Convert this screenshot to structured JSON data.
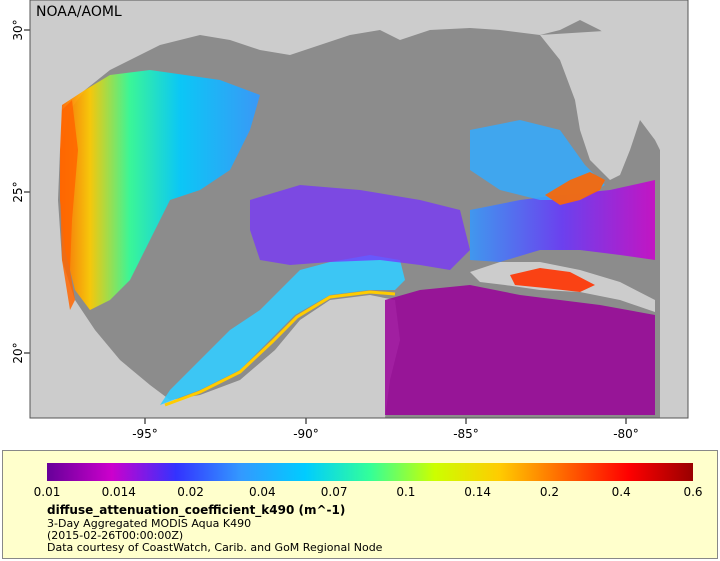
{
  "credit": "NOAA/AOML",
  "map": {
    "lon_ticks": [
      "-95°",
      "-90°",
      "-85°",
      "-80°"
    ],
    "lat_ticks": [
      "30°",
      "25°",
      "20°"
    ],
    "colors": {
      "land": "#cccccc",
      "nodata": "#8c8c8c",
      "boundary": "#660066",
      "rivers": "#6699cc"
    }
  },
  "colorbar": {
    "labels": [
      "0.01",
      "0.014",
      "0.02",
      "0.04",
      "0.07",
      "0.1",
      "0.14",
      "0.2",
      "0.4",
      "0.6"
    ],
    "colors": [
      "#660099",
      "#cc00cc",
      "#3333ff",
      "#3399ff",
      "#00ccff",
      "#33ff99",
      "#ccff00",
      "#ffcc00",
      "#ff6600",
      "#ff0000",
      "#990000"
    ]
  },
  "legend": {
    "variable": "diffuse_attenuation_coefficient_k490 (m^-1)",
    "lines": [
      "3-Day Aggregated MODIS Aqua K490",
      "(2015-02-26T00:00:00Z)",
      "Data courtesy of CoastWatch, Carib. and GoM Regional Node"
    ]
  }
}
